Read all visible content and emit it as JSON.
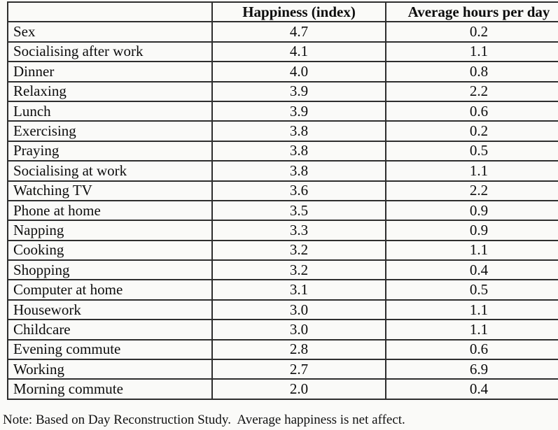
{
  "table": {
    "header": {
      "activity": "",
      "happiness": "Happiness (index)",
      "hours": "Average hours per day"
    },
    "rows": [
      [
        "Sex",
        "4.7",
        "0.2"
      ],
      [
        "Socialising after work",
        "4.1",
        "1.1"
      ],
      [
        "Dinner",
        "4.0",
        "0.8"
      ],
      [
        "Relaxing",
        "3.9",
        "2.2"
      ],
      [
        "Lunch",
        "3.9",
        "0.6"
      ],
      [
        "Exercising",
        "3.8",
        "0.2"
      ],
      [
        "Praying",
        "3.8",
        "0.5"
      ],
      [
        "Socialising at work",
        "3.8",
        "1.1"
      ],
      [
        "Watching TV",
        "3.6",
        "2.2"
      ],
      [
        "Phone at home",
        "3.5",
        "0.9"
      ],
      [
        "Napping",
        "3.3",
        "0.9"
      ],
      [
        "Cooking",
        "3.2",
        "1.1"
      ],
      [
        "Shopping",
        "3.2",
        "0.4"
      ],
      [
        "Computer at home",
        "3.1",
        "0.5"
      ],
      [
        "Housework",
        "3.0",
        "1.1"
      ],
      [
        "Childcare",
        "3.0",
        "1.1"
      ],
      [
        "Evening commute",
        "2.8",
        "0.6"
      ],
      [
        "Working",
        "2.7",
        "6.9"
      ],
      [
        "Morning commute",
        "2.0",
        "0.4"
      ]
    ]
  },
  "note": "Note: Based on Day Reconstruction Study.  Average happiness is net affect.",
  "colors": {
    "border": "#2e2e2e",
    "text": "#0d0d0d",
    "background": "#fafaf8"
  },
  "chart_data": {
    "type": "table",
    "columns": [
      "",
      "Happiness (index)",
      "Average hours per day"
    ],
    "categories": [
      "Sex",
      "Socialising after work",
      "Dinner",
      "Relaxing",
      "Lunch",
      "Exercising",
      "Praying",
      "Socialising at work",
      "Watching TV",
      "Phone at home",
      "Napping",
      "Cooking",
      "Shopping",
      "Computer at home",
      "Housework",
      "Childcare",
      "Evening commute",
      "Working",
      "Morning commute"
    ],
    "series": [
      {
        "name": "Happiness (index)",
        "values": [
          4.7,
          4.1,
          4.0,
          3.9,
          3.9,
          3.8,
          3.8,
          3.8,
          3.6,
          3.5,
          3.3,
          3.2,
          3.2,
          3.1,
          3.0,
          3.0,
          2.8,
          2.7,
          2.0
        ]
      },
      {
        "name": "Average hours per day",
        "values": [
          0.2,
          1.1,
          0.8,
          2.2,
          0.6,
          0.2,
          0.5,
          1.1,
          2.2,
          0.9,
          0.9,
          1.1,
          0.4,
          0.5,
          1.1,
          1.1,
          0.6,
          6.9,
          0.4
        ]
      }
    ],
    "note": "Note: Based on Day Reconstruction Study.  Average happiness is net affect."
  }
}
